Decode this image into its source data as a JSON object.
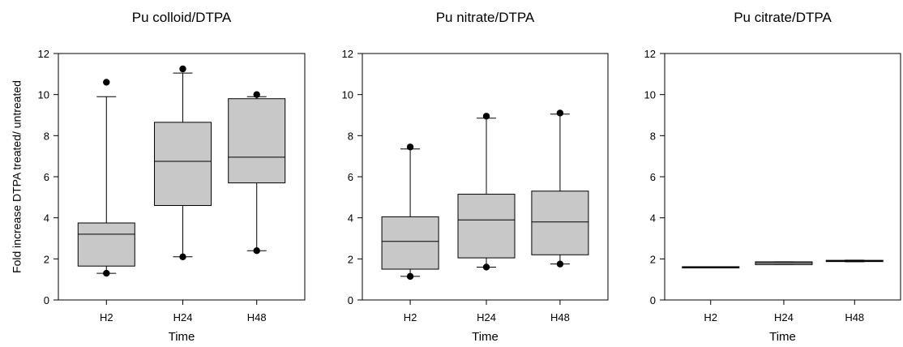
{
  "figure": {
    "ylabel": "Fold increase DTPA treated/ untreated"
  },
  "chart_data": [
    {
      "type": "boxplot",
      "title": "Pu colloid/DTPA",
      "xlabel": "Time",
      "ylabel": "Fold increase DTPA treated/ untreated",
      "ylim": [
        0,
        12
      ],
      "yticks": [
        0,
        2,
        4,
        6,
        8,
        10,
        12
      ],
      "categories": [
        "H2",
        "H24",
        "H48"
      ],
      "boxes": [
        {
          "category": "H2",
          "whisker_low": 1.3,
          "q1": 1.65,
          "median": 3.2,
          "q3": 3.75,
          "whisker_high": 9.9,
          "outliers": [
            1.3,
            10.6
          ]
        },
        {
          "category": "H24",
          "whisker_low": 2.1,
          "q1": 4.6,
          "median": 6.75,
          "q3": 8.65,
          "whisker_high": 11.05,
          "outliers": [
            2.1,
            11.25
          ]
        },
        {
          "category": "H48",
          "whisker_low": 2.4,
          "q1": 5.7,
          "median": 6.95,
          "q3": 9.8,
          "whisker_high": 9.9,
          "outliers": [
            2.4,
            10.0
          ]
        }
      ]
    },
    {
      "type": "boxplot",
      "title": "Pu nitrate/DTPA",
      "xlabel": "Time",
      "ylim": [
        0,
        12
      ],
      "yticks": [
        0,
        2,
        4,
        6,
        8,
        10,
        12
      ],
      "categories": [
        "H2",
        "H24",
        "H48"
      ],
      "boxes": [
        {
          "category": "H2",
          "whisker_low": 1.15,
          "q1": 1.5,
          "median": 2.85,
          "q3": 4.05,
          "whisker_high": 7.35,
          "outliers": [
            1.15,
            7.45
          ]
        },
        {
          "category": "H24",
          "whisker_low": 1.6,
          "q1": 2.05,
          "median": 3.9,
          "q3": 5.15,
          "whisker_high": 8.85,
          "outliers": [
            1.6,
            8.95
          ]
        },
        {
          "category": "H48",
          "whisker_low": 1.75,
          "q1": 2.2,
          "median": 3.8,
          "q3": 5.3,
          "whisker_high": 9.05,
          "outliers": [
            1.75,
            9.1
          ]
        }
      ]
    },
    {
      "type": "boxplot",
      "title": "Pu citrate/DTPA",
      "xlabel": "Time",
      "ylim": [
        0,
        12
      ],
      "yticks": [
        0,
        2,
        4,
        6,
        8,
        10,
        12
      ],
      "categories": [
        "H2",
        "H24",
        "H48"
      ],
      "boxes": [
        {
          "category": "H2",
          "whisker_low": 1.58,
          "q1": 1.58,
          "median": 1.6,
          "q3": 1.62,
          "whisker_high": 1.62,
          "outliers": []
        },
        {
          "category": "H24",
          "whisker_low": 1.72,
          "q1": 1.72,
          "median": 1.8,
          "q3": 1.86,
          "whisker_high": 1.86,
          "outliers": []
        },
        {
          "category": "H48",
          "whisker_low": 1.86,
          "q1": 1.87,
          "median": 1.9,
          "q3": 1.93,
          "whisker_high": 1.94,
          "outliers": []
        }
      ]
    }
  ],
  "colors": {
    "box_fill": "#c8c8c8",
    "line": "#000000",
    "outlier": "#000000",
    "background": "#ffffff"
  }
}
